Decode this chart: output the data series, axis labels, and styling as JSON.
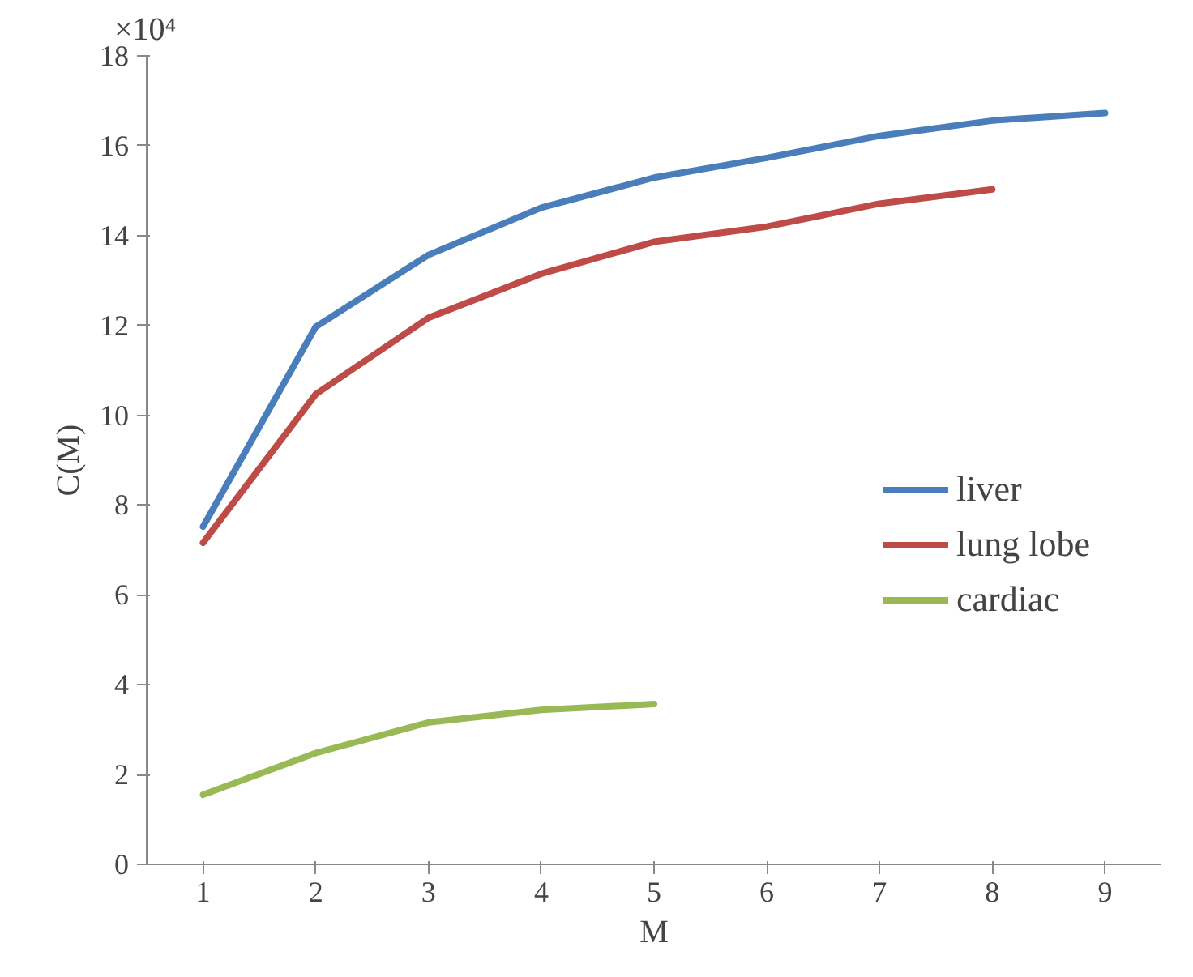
{
  "chart_data": {
    "type": "line",
    "xlabel": "M",
    "ylabel": "C(M)",
    "categories": [
      "1",
      "2",
      "3",
      "4",
      "5",
      "6",
      "7",
      "8",
      "9"
    ],
    "series": [
      {
        "name": "liver",
        "color": "#4a7ebb",
        "values": [
          7.52,
          11.97,
          13.57,
          14.62,
          15.29,
          15.73,
          16.22,
          16.56,
          16.73
        ]
      },
      {
        "name": "lung lobe",
        "color": "#be4b48",
        "values": [
          7.16,
          10.47,
          12.17,
          13.15,
          13.86,
          14.2,
          14.71,
          15.03,
          null
        ]
      },
      {
        "name": "cardiac",
        "color": "#98b954",
        "values": [
          1.55,
          2.48,
          3.16,
          3.44,
          3.57,
          null,
          null,
          null,
          null
        ]
      }
    ],
    "ylim": [
      0,
      18
    ],
    "yticks": [
      0,
      2,
      4,
      6,
      8,
      10,
      12,
      14,
      16,
      18
    ],
    "annotations": [
      "×10⁴"
    ],
    "grid": false,
    "legend": "right",
    "marker": "none",
    "line_style": "solid"
  }
}
